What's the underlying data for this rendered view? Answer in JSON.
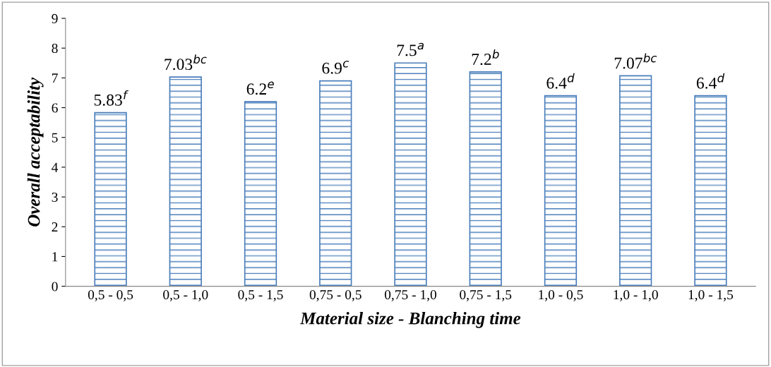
{
  "chart_data": {
    "type": "bar",
    "xlabel": "Material size - Blanching time",
    "ylabel": "Overall acceptability",
    "categories": [
      "0,5 - 0,5",
      "0,5 - 1,0",
      "0,5 - 1,5",
      "0,75 - 0,5",
      "0,75 - 1,0",
      "0,75 - 1,5",
      "1,0 - 0,5",
      "1,0 - 1,0",
      "1,0 - 1,5"
    ],
    "values": [
      5.83,
      7.03,
      6.2,
      6.9,
      7.5,
      7.2,
      6.4,
      7.07,
      6.4
    ],
    "value_labels": [
      "5.83$^{f}$",
      "7.03$^{bc}$",
      "6.2$^{e}$",
      "6.9$^{c}$",
      "7.5$^{a}$",
      "7.2$^{b}$",
      "6.4$^{d}$",
      "7.07$^{bc}$",
      "6.4$^{d}$"
    ],
    "color": "#4a7ebb",
    "ylim": [
      0,
      9
    ],
    "yticks": [
      0,
      1,
      2,
      3,
      4,
      5,
      6,
      7,
      8,
      9
    ],
    "grid": false
  }
}
